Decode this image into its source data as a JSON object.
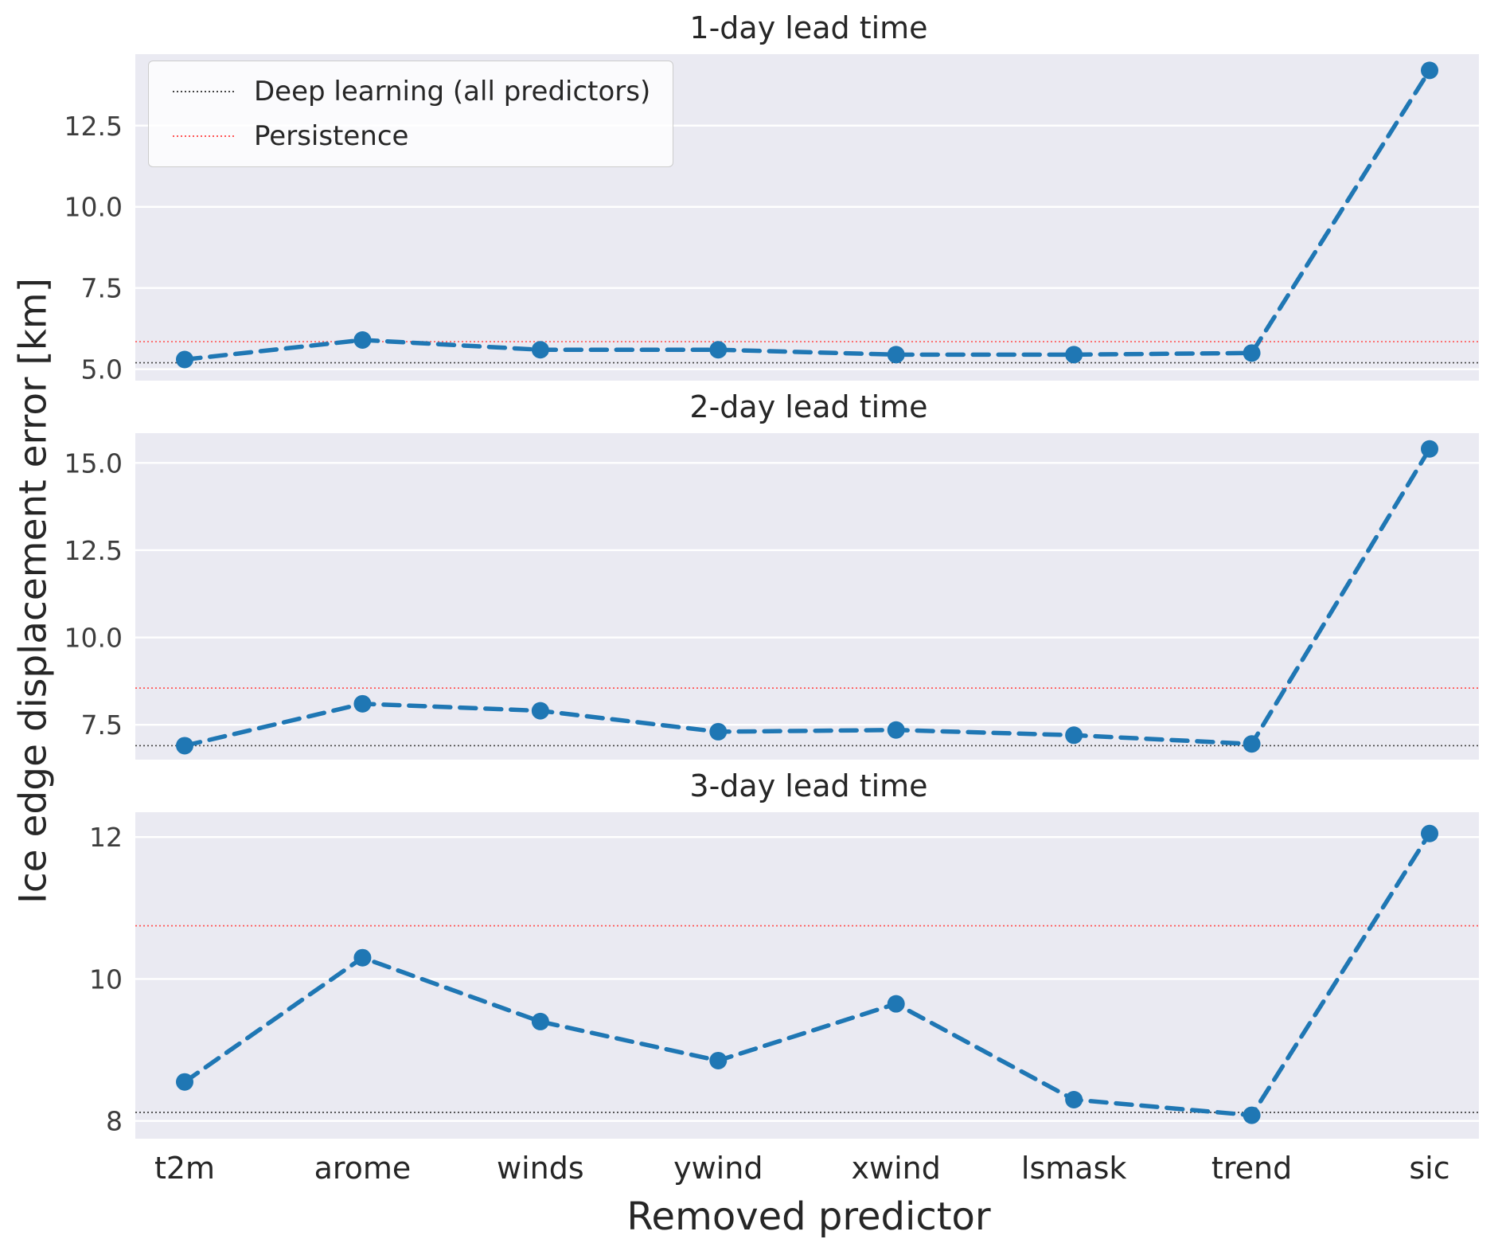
{
  "figure": {
    "ylabel": "Ice edge displacement error [km]",
    "xlabel": "Removed predictor"
  },
  "legend": {
    "position": "upper left",
    "items": [
      {
        "label": "Deep learning (all predictors)",
        "color": "#444444",
        "line_style": "dotted"
      },
      {
        "label": "Persistence",
        "color": "#ff5555",
        "line_style": "dotted"
      }
    ]
  },
  "colors": {
    "series": "#1f77b4",
    "plot_background": "#eaeaf2",
    "grid": "#ffffff",
    "tick_text": "#3d3d3d",
    "label_text": "#262626"
  },
  "chart_data": [
    {
      "type": "line",
      "title": "1-day lead time",
      "categories": [
        "t2m",
        "arome",
        "winds",
        "ywind",
        "xwind",
        "lsmask",
        "trend",
        "sic"
      ],
      "series": [
        {
          "style": "dashed",
          "marker": "circle",
          "values": [
            5.3,
            5.9,
            5.6,
            5.6,
            5.45,
            5.45,
            5.5,
            14.2
          ]
        }
      ],
      "reference_lines": [
        {
          "name": "Deep learning (all predictors)",
          "value": 5.2,
          "color": "#444444"
        },
        {
          "name": "Persistence",
          "value": 5.85,
          "color": "#ff5555"
        }
      ],
      "yticks": [
        {
          "value": 5.0,
          "label": "5.0"
        },
        {
          "value": 7.5,
          "label": "7.5"
        },
        {
          "value": 10.0,
          "label": "10.0"
        },
        {
          "value": 12.5,
          "label": "12.5"
        }
      ],
      "ylim": [
        4.65,
        14.7
      ],
      "grid": true,
      "xlabel": "",
      "ylabel": ""
    },
    {
      "type": "line",
      "title": "2-day lead time",
      "categories": [
        "t2m",
        "arome",
        "winds",
        "ywind",
        "xwind",
        "lsmask",
        "trend",
        "sic"
      ],
      "series": [
        {
          "style": "dashed",
          "marker": "circle",
          "values": [
            6.9,
            8.1,
            7.9,
            7.3,
            7.35,
            7.2,
            6.95,
            15.4
          ]
        }
      ],
      "reference_lines": [
        {
          "name": "Deep learning (all predictors)",
          "value": 6.9,
          "color": "#444444"
        },
        {
          "name": "Persistence",
          "value": 8.55,
          "color": "#ff5555"
        }
      ],
      "yticks": [
        {
          "value": 7.5,
          "label": "7.5"
        },
        {
          "value": 10.0,
          "label": "10.0"
        },
        {
          "value": 12.5,
          "label": "12.5"
        },
        {
          "value": 15.0,
          "label": "15.0"
        }
      ],
      "ylim": [
        6.5,
        15.85
      ],
      "grid": true,
      "xlabel": "",
      "ylabel": ""
    },
    {
      "type": "line",
      "title": "3-day lead time",
      "categories": [
        "t2m",
        "arome",
        "winds",
        "ywind",
        "xwind",
        "lsmask",
        "trend",
        "sic"
      ],
      "series": [
        {
          "style": "dashed",
          "marker": "circle",
          "values": [
            8.55,
            10.3,
            9.4,
            8.85,
            9.65,
            8.3,
            8.08,
            12.05
          ]
        }
      ],
      "reference_lines": [
        {
          "name": "Deep learning (all predictors)",
          "value": 8.12,
          "color": "#444444"
        },
        {
          "name": "Persistence",
          "value": 10.75,
          "color": "#ff5555"
        }
      ],
      "yticks": [
        {
          "value": 8,
          "label": "8"
        },
        {
          "value": 10,
          "label": "10"
        },
        {
          "value": 12,
          "label": "12"
        }
      ],
      "ylim": [
        7.75,
        12.35
      ],
      "grid": true,
      "xlabel": "",
      "ylabel": ""
    }
  ]
}
